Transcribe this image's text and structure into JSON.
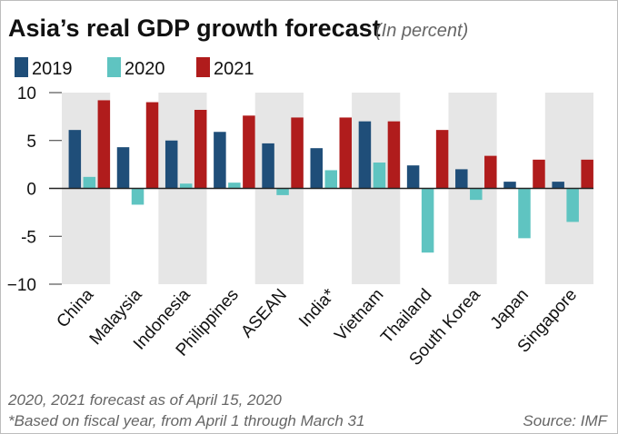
{
  "chart_data": {
    "type": "bar",
    "title": "Asia’s real GDP growth forecast",
    "subtitle": "(In percent)",
    "categories": [
      "China",
      "Malaysia",
      "Indonesia",
      "Philippines",
      "ASEAN",
      "India*",
      "Vietnam",
      "Thailand",
      "South Korea",
      "Japan",
      "Singapore"
    ],
    "series": [
      {
        "name": "2019",
        "color": "#1f4e79",
        "values": [
          6.1,
          4.3,
          5.0,
          5.9,
          4.7,
          4.2,
          7.0,
          2.4,
          2.0,
          0.7,
          0.7
        ]
      },
      {
        "name": "2020",
        "color": "#5fc4c1",
        "values": [
          1.2,
          -1.7,
          0.5,
          0.6,
          -0.7,
          1.9,
          2.7,
          -6.7,
          -1.2,
          -5.2,
          -3.5
        ]
      },
      {
        "name": "2021",
        "color": "#b01c1c",
        "values": [
          9.2,
          9.0,
          8.2,
          7.6,
          7.4,
          7.4,
          7.0,
          6.1,
          3.4,
          3.0,
          3.0
        ]
      }
    ],
    "ylim": [
      -10,
      10
    ],
    "yticks": [
      10,
      5,
      0,
      -5,
      -10
    ],
    "ytick_labels": [
      "10",
      "5",
      "0",
      "-5",
      "−10"
    ],
    "xlabel": "",
    "ylabel": "",
    "grid": false,
    "alternating_bands": true,
    "legend_position": "top-left"
  },
  "notes": {
    "line1": "2020, 2021 forecast as of April 15, 2020",
    "line2": "*Based on fiscal year, from April 1 through March 31",
    "source": "Source: IMF"
  }
}
